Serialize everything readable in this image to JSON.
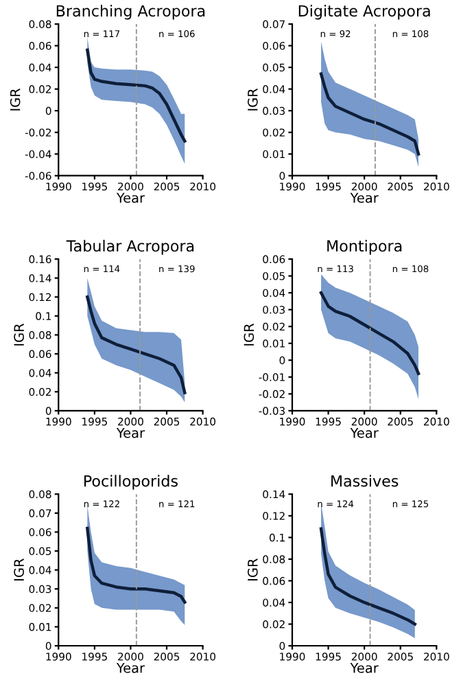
{
  "chart_data": [
    {
      "type": "line",
      "title": "Branching Acropora",
      "xlabel": "Year",
      "ylabel": "IGR",
      "xlim": [
        1990,
        2010
      ],
      "xticks": [
        1990,
        1995,
        2000,
        2005,
        2010
      ],
      "ylim": [
        -0.06,
        0.08
      ],
      "yticks": [
        -0.06,
        -0.04,
        -0.02,
        0,
        0.02,
        0.04,
        0.06,
        0.08
      ],
      "grid": false,
      "marker": "none",
      "line_style": "solid",
      "annotations": [
        "n = 117",
        "n = 106"
      ],
      "ref_lines": [
        {
          "axis": "x",
          "value": 2000.8,
          "color": "#999999",
          "line_style": "dashed"
        }
      ],
      "series": [
        {
          "color": "#0f1f3a",
          "x": [
            1994,
            1994.5,
            1995,
            1996,
            1998,
            2000,
            2002,
            2003,
            2004,
            2005,
            2006,
            2007,
            2007.5
          ],
          "values": [
            0.056,
            0.035,
            0.029,
            0.027,
            0.025,
            0.024,
            0.023,
            0.021,
            0.016,
            0.006,
            -0.008,
            -0.022,
            -0.028
          ],
          "lower": [
            0.044,
            0.022,
            0.014,
            0.01,
            0.009,
            0.008,
            0.006,
            0.003,
            -0.003,
            -0.013,
            -0.027,
            -0.042,
            -0.049
          ],
          "upper": [
            0.068,
            0.045,
            0.04,
            0.039,
            0.038,
            0.038,
            0.037,
            0.036,
            0.032,
            0.024,
            0.011,
            -0.003,
            -0.003
          ]
        }
      ]
    },
    {
      "type": "line",
      "title": "Digitate Acropora",
      "xlabel": "Year",
      "ylabel": "IGR",
      "xlim": [
        1990,
        2010
      ],
      "xticks": [
        1990,
        1995,
        2000,
        2005,
        2010
      ],
      "ylim": [
        0,
        0.07
      ],
      "yticks": [
        0,
        0.01,
        0.02,
        0.03,
        0.04,
        0.05,
        0.06,
        0.07
      ],
      "grid": false,
      "marker": "none",
      "line_style": "solid",
      "annotations": [
        "n = 92",
        "n = 108"
      ],
      "ref_lines": [
        {
          "axis": "x",
          "value": 2001.5,
          "color": "#999999",
          "line_style": "dashed"
        }
      ],
      "series": [
        {
          "color": "#0f1f3a",
          "x": [
            1994,
            1994.5,
            1995,
            1996,
            1998,
            2000,
            2002,
            2004,
            2006,
            2007,
            2007.5
          ],
          "values": [
            0.047,
            0.041,
            0.036,
            0.032,
            0.029,
            0.026,
            0.024,
            0.021,
            0.018,
            0.016,
            0.01
          ],
          "lower": [
            0.034,
            0.024,
            0.021,
            0.02,
            0.019,
            0.017,
            0.016,
            0.014,
            0.012,
            0.01,
            0.004
          ],
          "upper": [
            0.062,
            0.054,
            0.048,
            0.043,
            0.04,
            0.037,
            0.034,
            0.031,
            0.028,
            0.026,
            0.017
          ]
        }
      ]
    },
    {
      "type": "line",
      "title": "Tabular Acropora",
      "xlabel": "Year",
      "ylabel": "IGR",
      "xlim": [
        1990,
        2010
      ],
      "xticks": [
        1990,
        1995,
        2000,
        2005,
        2010
      ],
      "ylim": [
        0,
        0.16
      ],
      "yticks": [
        0,
        0.02,
        0.04,
        0.06,
        0.08,
        0.1,
        0.12,
        0.14,
        0.16
      ],
      "grid": false,
      "marker": "none",
      "line_style": "solid",
      "annotations": [
        "n = 114",
        "n = 139"
      ],
      "ref_lines": [
        {
          "axis": "x",
          "value": 2001.3,
          "color": "#999999",
          "line_style": "dashed"
        }
      ],
      "series": [
        {
          "color": "#0f1f3a",
          "x": [
            1994,
            1994.5,
            1995,
            1996,
            1998,
            2000,
            2002,
            2004,
            2006,
            2007,
            2007.5
          ],
          "values": [
            0.12,
            0.105,
            0.092,
            0.077,
            0.07,
            0.065,
            0.06,
            0.055,
            0.048,
            0.035,
            0.019
          ],
          "lower": [
            0.1,
            0.085,
            0.07,
            0.055,
            0.048,
            0.043,
            0.036,
            0.029,
            0.022,
            0.015,
            0.009
          ],
          "upper": [
            0.14,
            0.125,
            0.11,
            0.095,
            0.087,
            0.085,
            0.083,
            0.083,
            0.082,
            0.075,
            0.03
          ]
        }
      ]
    },
    {
      "type": "line",
      "title": "Montipora",
      "xlabel": "Year",
      "ylabel": "IGR",
      "xlim": [
        1990,
        2010
      ],
      "xticks": [
        1990,
        1995,
        2000,
        2005,
        2010
      ],
      "ylim": [
        -0.03,
        0.06
      ],
      "yticks": [
        -0.03,
        -0.02,
        -0.01,
        0,
        0.01,
        0.02,
        0.03,
        0.04,
        0.05,
        0.06
      ],
      "grid": false,
      "marker": "none",
      "line_style": "solid",
      "annotations": [
        "n = 113",
        "n = 108"
      ],
      "ref_lines": [
        {
          "axis": "x",
          "value": 2000.8,
          "color": "#999999",
          "line_style": "dashed"
        }
      ],
      "series": [
        {
          "color": "#0f1f3a",
          "x": [
            1994,
            1995,
            1996,
            1998,
            2000,
            2002,
            2004,
            2006,
            2007,
            2007.5
          ],
          "values": [
            0.04,
            0.032,
            0.029,
            0.026,
            0.021,
            0.016,
            0.011,
            0.004,
            -0.003,
            -0.008
          ],
          "lower": [
            0.03,
            0.016,
            0.013,
            0.011,
            0.007,
            0.003,
            -0.002,
            -0.008,
            -0.016,
            -0.023
          ],
          "upper": [
            0.051,
            0.046,
            0.043,
            0.04,
            0.036,
            0.032,
            0.028,
            0.023,
            0.015,
            0.008
          ]
        }
      ]
    },
    {
      "type": "line",
      "title": "Pocilloporids",
      "xlabel": "Year",
      "ylabel": "IGR",
      "xlim": [
        1990,
        2010
      ],
      "xticks": [
        1990,
        1995,
        2000,
        2005,
        2010
      ],
      "ylim": [
        0,
        0.08
      ],
      "yticks": [
        0,
        0.01,
        0.02,
        0.03,
        0.04,
        0.05,
        0.06,
        0.07,
        0.08
      ],
      "grid": false,
      "marker": "none",
      "line_style": "solid",
      "annotations": [
        "n = 122",
        "n = 121"
      ],
      "ref_lines": [
        {
          "axis": "x",
          "value": 2000.8,
          "color": "#999999",
          "line_style": "dashed"
        }
      ],
      "series": [
        {
          "color": "#0f1f3a",
          "x": [
            1994,
            1994.5,
            1995,
            1996,
            1998,
            2000,
            2002,
            2004,
            2006,
            2007,
            2007.5
          ],
          "values": [
            0.062,
            0.045,
            0.037,
            0.033,
            0.031,
            0.03,
            0.03,
            0.029,
            0.028,
            0.026,
            0.023
          ],
          "lower": [
            0.05,
            0.03,
            0.022,
            0.02,
            0.019,
            0.019,
            0.019,
            0.019,
            0.018,
            0.013,
            0.011
          ],
          "upper": [
            0.074,
            0.06,
            0.049,
            0.044,
            0.042,
            0.041,
            0.039,
            0.037,
            0.035,
            0.033,
            0.032
          ]
        }
      ]
    },
    {
      "type": "line",
      "title": "Massives",
      "xlabel": "Year",
      "ylabel": "IGR",
      "xlim": [
        1990,
        2010
      ],
      "xticks": [
        1990,
        1995,
        2000,
        2005,
        2010
      ],
      "ylim": [
        0,
        0.14
      ],
      "yticks": [
        0,
        0.02,
        0.04,
        0.06,
        0.08,
        0.1,
        0.12,
        0.14
      ],
      "grid": false,
      "marker": "none",
      "line_style": "solid",
      "annotations": [
        "n = 124",
        "n = 125"
      ],
      "ref_lines": [
        {
          "axis": "x",
          "value": 2000.8,
          "color": "#999999",
          "line_style": "dashed"
        }
      ],
      "series": [
        {
          "color": "#0f1f3a",
          "x": [
            1994,
            1994.5,
            1995,
            1996,
            1998,
            2000,
            2002,
            2004,
            2006,
            2007
          ],
          "values": [
            0.108,
            0.085,
            0.066,
            0.054,
            0.046,
            0.04,
            0.035,
            0.03,
            0.024,
            0.02
          ],
          "lower": [
            0.085,
            0.06,
            0.044,
            0.035,
            0.03,
            0.026,
            0.022,
            0.017,
            0.011,
            0.007
          ],
          "upper": [
            0.132,
            0.11,
            0.087,
            0.074,
            0.065,
            0.058,
            0.052,
            0.045,
            0.038,
            0.033
          ]
        }
      ]
    }
  ]
}
